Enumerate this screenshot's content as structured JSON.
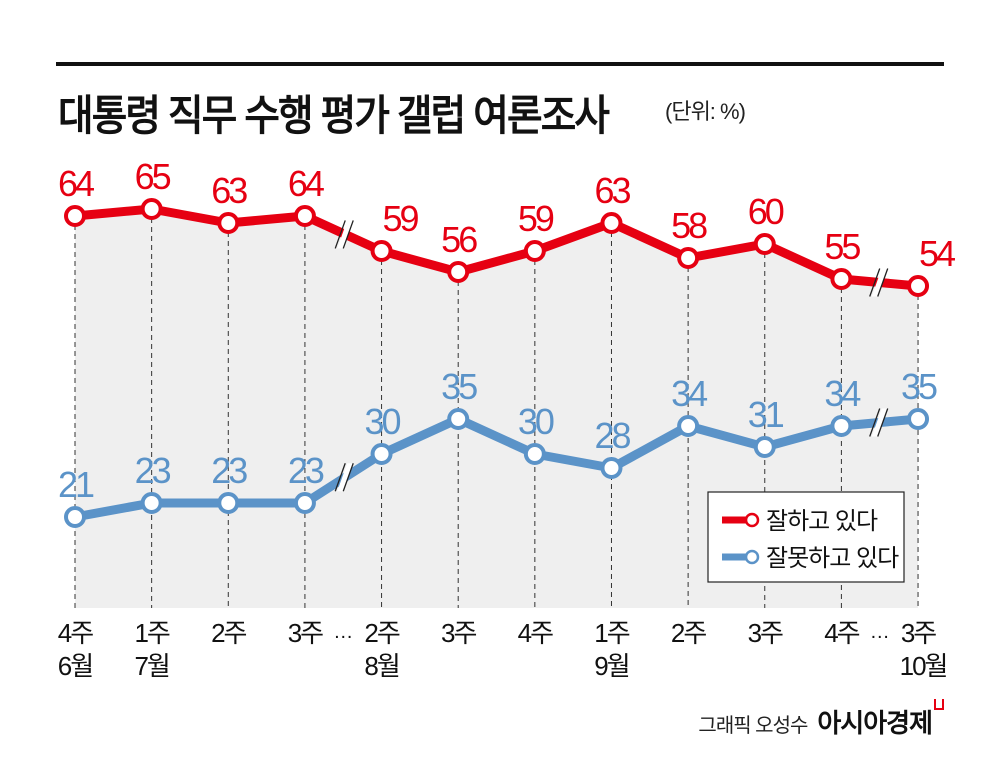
{
  "title": "대통령 직무 수행 평가 갤럽 여론조사",
  "unit": "(단위: %)",
  "credit": {
    "graphic": "그래픽 오성수",
    "brand": "아시아경제"
  },
  "colors": {
    "approve": "#e60012",
    "disapprove": "#5b93c8",
    "fill": "#efefef"
  },
  "chart_data": {
    "type": "line",
    "title": "대통령 직무 수행 평가 갤럽 여론조사",
    "unit": "(단위: %)",
    "categories": [
      {
        "week": "4주",
        "month": "6월"
      },
      {
        "week": "1주",
        "month": "7월"
      },
      {
        "week": "2주",
        "month": ""
      },
      {
        "week": "3주",
        "month": ""
      },
      {
        "week": "2주",
        "month": "8월"
      },
      {
        "week": "3주",
        "month": ""
      },
      {
        "week": "4주",
        "month": ""
      },
      {
        "week": "1주",
        "month": "9월"
      },
      {
        "week": "2주",
        "month": ""
      },
      {
        "week": "3주",
        "month": ""
      },
      {
        "week": "4주",
        "month": ""
      },
      {
        "week": "3주",
        "month": "10월"
      }
    ],
    "gap_markers": [
      {
        "after_index": 3,
        "label": "…"
      },
      {
        "after_index": 10,
        "label": "…"
      }
    ],
    "series": [
      {
        "name": "잘하고 있다",
        "color": "#e60012",
        "values": [
          64,
          65,
          63,
          64,
          59,
          56,
          59,
          63,
          58,
          60,
          55,
          54
        ]
      },
      {
        "name": "잘못하고 있다",
        "color": "#5b93c8",
        "values": [
          21,
          23,
          23,
          23,
          30,
          35,
          30,
          28,
          34,
          31,
          34,
          35
        ]
      }
    ],
    "legend": "bottom-right",
    "grid": "vertical dashed"
  }
}
